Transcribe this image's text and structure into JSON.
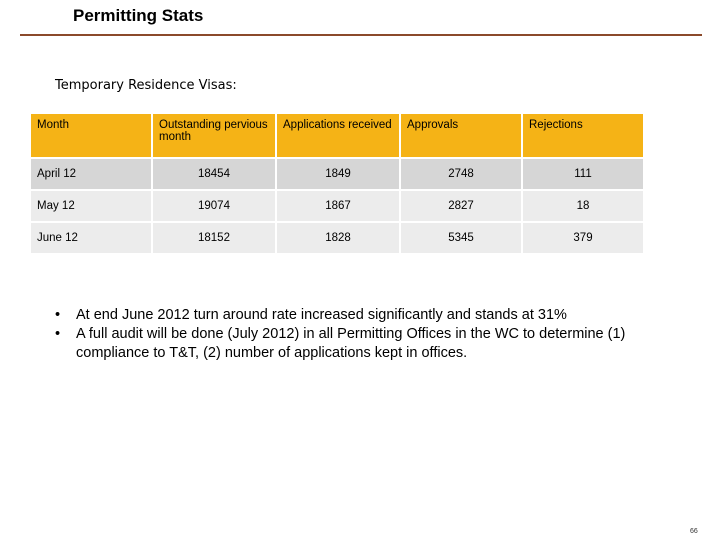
{
  "header": {
    "title": "Permitting Stats"
  },
  "section": {
    "heading": "Temporary Residence Visas:"
  },
  "table": {
    "columns": [
      "Month",
      "Outstanding pervious month",
      "Applications received",
      "Approvals",
      "Rejections"
    ],
    "rows": [
      [
        "April  12",
        "18454",
        "1849",
        "2748",
        "111"
      ],
      [
        "May  12",
        "19074",
        "1867",
        "2827",
        "18"
      ],
      [
        "June  12",
        "18152",
        "1828",
        "5345",
        "379"
      ]
    ]
  },
  "bullets": {
    "bullet_char": "•",
    "items": [
      "At end June 2012 turn around rate increased significantly and stands at 31%",
      "A full audit will be done (July 2012) in all Permitting Offices in the WC to determine (1) compliance to T&T, (2) number of  applications kept in offices."
    ]
  },
  "footer": {
    "page_number": "66"
  },
  "colors": {
    "header_fill": "#f5b316",
    "title_rule": "#8b4a2b",
    "row_odd": "#d6d6d6",
    "row_even": "#ececec"
  }
}
